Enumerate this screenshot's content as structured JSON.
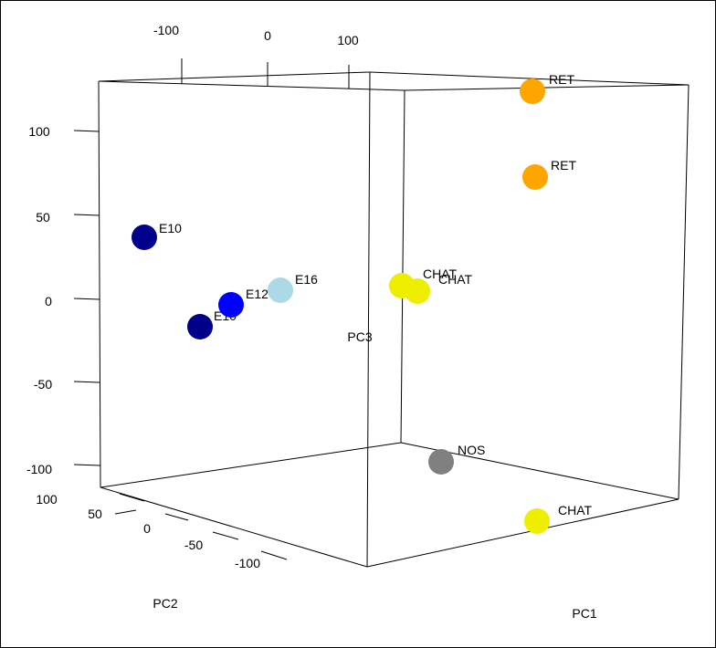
{
  "chart_data": {
    "type": "scatter",
    "title": "",
    "axes": {
      "x": {
        "label": "PC1",
        "ticks": []
      },
      "y": {
        "label": "PC2",
        "ticks": [
          "100",
          "50",
          "0",
          "-50",
          "-100"
        ]
      },
      "z": {
        "label": "PC3",
        "ticks": [
          "100",
          "50",
          "0",
          "-50",
          "-100"
        ]
      },
      "top": {
        "ticks": [
          "-100",
          "0",
          "100"
        ]
      }
    },
    "points": [
      {
        "label": "E10",
        "color": "#00008B"
      },
      {
        "label": "E10",
        "color": "#00008B"
      },
      {
        "label": "E12",
        "color": "#0000FF"
      },
      {
        "label": "E16",
        "color": "#ADD8E6"
      },
      {
        "label": "CHAT",
        "color": "#EEEE00"
      },
      {
        "label": "CHAT",
        "color": "#EEEE00"
      },
      {
        "label": "RET",
        "color": "#FFA500"
      },
      {
        "label": "RET",
        "color": "#FFA500"
      },
      {
        "label": "NOS",
        "color": "#808080"
      },
      {
        "label": "CHAT",
        "color": "#EEEE00"
      }
    ]
  }
}
